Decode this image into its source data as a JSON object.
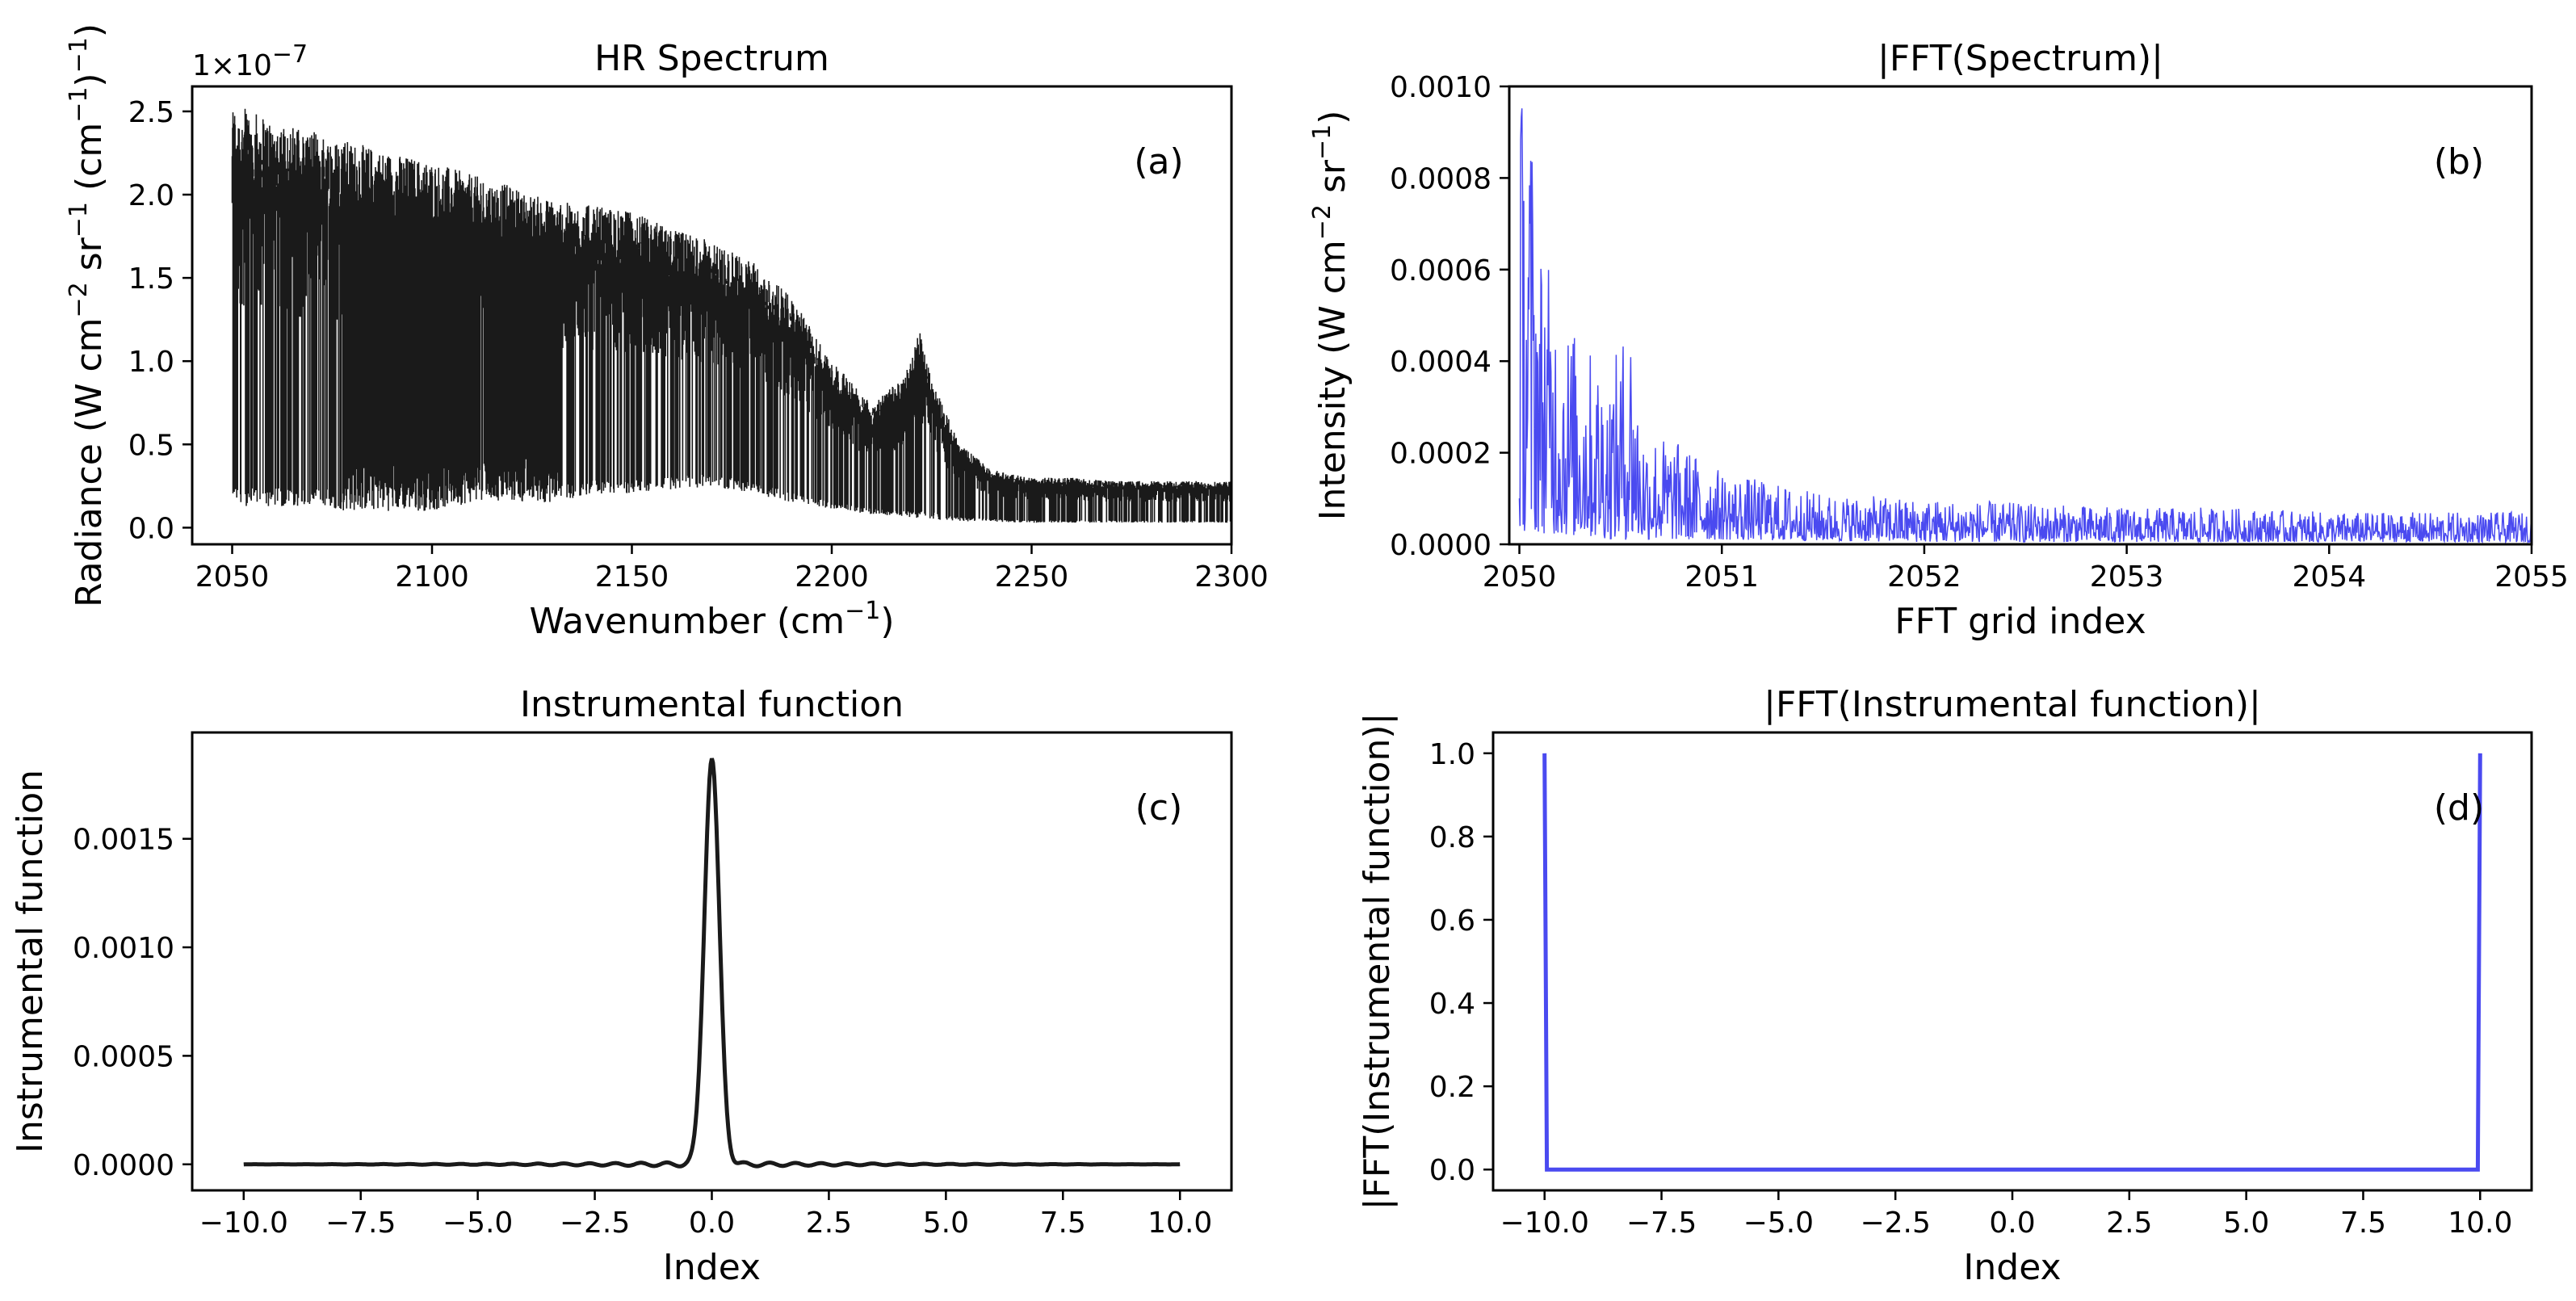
{
  "chart_data": [
    {
      "type": "line",
      "panel": "a",
      "title": "HR Spectrum",
      "panel_label": "(a)",
      "xlabel": "Wavenumber (cm",
      "xlabel_sup": "−1",
      "xlabel_tail": ")",
      "ylabel_parts": [
        "Radiance (W cm",
        "−2",
        " sr",
        "−1",
        " (cm",
        "−1",
        ")",
        "−1",
        ")"
      ],
      "y_scale_label": "1×10",
      "y_scale_exp": "−7",
      "xlim": [
        2040,
        2300
      ],
      "ylim": [
        -0.1,
        2.65
      ],
      "xticks": [
        2050,
        2100,
        2150,
        2200,
        2250,
        2300
      ],
      "xtick_labels": [
        "2050",
        "2100",
        "2150",
        "2200",
        "2250",
        "2300"
      ],
      "yticks": [
        0.0,
        0.5,
        1.0,
        1.5,
        2.0,
        2.5
      ],
      "ytick_labels": [
        "0.0",
        "0.5",
        "1.0",
        "1.5",
        "2.0",
        "2.5"
      ],
      "series": [
        {
          "color": "#1a1a1a",
          "upper_envelope": {
            "x": [
              2050,
              2060,
              2075,
              2090,
              2100,
              2110,
              2120,
              2125,
              2135,
              2145,
              2150,
              2160,
              2170,
              2180,
              2190,
              2200,
              2210,
              2218,
              2222,
              2225,
              2232,
              2240,
              2250,
              2260,
              2270,
              2280,
              2290,
              2300
            ],
            "y": [
              2.55,
              2.45,
              2.35,
              2.25,
              2.2,
              2.12,
              2.05,
              2.0,
              1.95,
              1.92,
              1.9,
              1.8,
              1.72,
              1.6,
              1.38,
              1.0,
              0.75,
              0.9,
              1.18,
              0.9,
              0.5,
              0.35,
              0.3,
              0.3,
              0.28,
              0.28,
              0.28,
              0.28
            ]
          },
          "lower_envelope": {
            "x": [
              2050,
              2075,
              2078,
              2100,
              2110,
              2130,
              2140,
              2150,
              2170,
              2190,
              2210,
              2230,
              2250,
              2270,
              2300
            ],
            "y": [
              0.12,
              0.12,
              0.1,
              0.1,
              0.15,
              0.15,
              0.2,
              0.2,
              0.25,
              0.15,
              0.08,
              0.04,
              0.03,
              0.03,
              0.03
            ]
          }
        }
      ]
    },
    {
      "type": "line",
      "panel": "b",
      "title": "|FFT(Spectrum)|",
      "panel_label": "(b)",
      "xlabel": "FFT grid index",
      "ylabel_parts": [
        "Intensity (W cm",
        "−2",
        " sr",
        "−1",
        ")"
      ],
      "xlim": [
        2049.95,
        2055
      ],
      "ylim": [
        0,
        0.001
      ],
      "xticks": [
        2050,
        2051,
        2052,
        2053,
        2054,
        2055
      ],
      "xtick_labels": [
        "2050",
        "2051",
        "2052",
        "2053",
        "2054",
        "2055"
      ],
      "yticks": [
        0.0,
        0.0002,
        0.0004,
        0.0006,
        0.0008,
        0.001
      ],
      "ytick_labels": [
        "0.0000",
        "0.0002",
        "0.0004",
        "0.0006",
        "0.0008",
        "0.0010"
      ],
      "series": [
        {
          "color": "#4a4af0",
          "envelope": {
            "x": [
              2050.0,
              2050.05,
              2050.1,
              2050.2,
              2050.3,
              2050.45,
              2050.55,
              2050.6,
              2050.8,
              2051.0,
              2051.5,
              2052.0,
              2052.5,
              2053.0,
              2053.5,
              2054.0,
              2054.5,
              2055.0
            ],
            "y": [
              0.001,
              0.001,
              0.00068,
              0.00052,
              0.00045,
              0.00038,
              0.00051,
              0.00026,
              0.00022,
              0.00016,
              0.00011,
              0.0001,
              9e-05,
              8e-05,
              8e-05,
              7e-05,
              7e-05,
              7e-05
            ]
          },
          "floor": {
            "x": [
              2050.0,
              2050.2,
              2050.5,
              2051.0,
              2052.0,
              2053.0,
              2055.0
            ],
            "y": [
              3e-05,
              2e-05,
              1e-05,
              1e-05,
              5e-06,
              5e-06,
              5e-06
            ]
          }
        }
      ]
    },
    {
      "type": "line",
      "panel": "c",
      "title": "Instrumental function",
      "panel_label": "(c)",
      "xlabel": "Index",
      "ylabel": "Instrumental function",
      "xlim": [
        -11.1,
        11.1
      ],
      "ylim": [
        -0.00012,
        0.00199
      ],
      "xticks": [
        -10,
        -7.5,
        -5,
        -2.5,
        0,
        2.5,
        5,
        7.5,
        10
      ],
      "xtick_labels": [
        "−10.0",
        "−7.5",
        "−5.0",
        "−2.5",
        "0.0",
        "2.5",
        "5.0",
        "7.5",
        "10.0"
      ],
      "yticks": [
        0.0,
        0.0005,
        0.001,
        0.0015
      ],
      "ytick_labels": [
        "0.0000",
        "0.0005",
        "0.0010",
        "0.0015"
      ],
      "series": [
        {
          "color": "#1a1a1a",
          "peak_x": 0.0,
          "peak_y": 0.00187,
          "fwhm": 0.38,
          "x_range": [
            -10,
            10
          ]
        }
      ]
    },
    {
      "type": "line",
      "panel": "d",
      "title": "|FFT(Instrumental function)|",
      "panel_label": "(d)",
      "xlabel": "Index",
      "ylabel": "|FFT(Instrumental function)|",
      "xlim": [
        -11.1,
        11.1
      ],
      "ylim": [
        -0.05,
        1.05
      ],
      "xticks": [
        -10,
        -7.5,
        -5,
        -2.5,
        0,
        2.5,
        5,
        7.5,
        10
      ],
      "xtick_labels": [
        "−10.0",
        "−7.5",
        "−5.0",
        "−2.5",
        "0.0",
        "2.5",
        "5.0",
        "7.5",
        "10.0"
      ],
      "yticks": [
        0.0,
        0.2,
        0.4,
        0.6,
        0.8,
        1.0
      ],
      "ytick_labels": [
        "0.0",
        "0.2",
        "0.4",
        "0.6",
        "0.8",
        "1.0"
      ],
      "series": [
        {
          "color": "#4a4af0",
          "x": [
            -10.0,
            -9.95,
            9.95,
            10.0
          ],
          "y": [
            1.0,
            0.0,
            0.0,
            1.0
          ]
        }
      ]
    }
  ]
}
